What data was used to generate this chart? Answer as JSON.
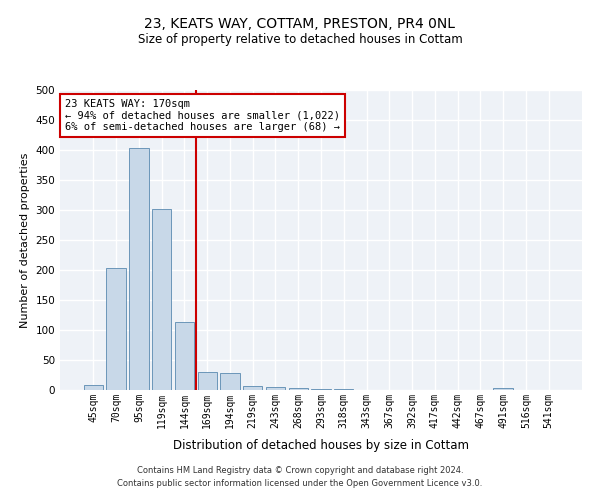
{
  "title_line1": "23, KEATS WAY, COTTAM, PRESTON, PR4 0NL",
  "title_line2": "Size of property relative to detached houses in Cottam",
  "xlabel": "Distribution of detached houses by size in Cottam",
  "ylabel": "Number of detached properties",
  "bar_color": "#c8d8e8",
  "bar_edge_color": "#5a8ab0",
  "categories": [
    "45sqm",
    "70sqm",
    "95sqm",
    "119sqm",
    "144sqm",
    "169sqm",
    "194sqm",
    "219sqm",
    "243sqm",
    "268sqm",
    "293sqm",
    "318sqm",
    "343sqm",
    "367sqm",
    "392sqm",
    "417sqm",
    "442sqm",
    "467sqm",
    "491sqm",
    "516sqm",
    "541sqm"
  ],
  "values": [
    8,
    204,
    403,
    301,
    113,
    30,
    28,
    7,
    5,
    3,
    2,
    2,
    0,
    0,
    0,
    0,
    0,
    0,
    4,
    0,
    0
  ],
  "ylim": [
    0,
    500
  ],
  "yticks": [
    0,
    50,
    100,
    150,
    200,
    250,
    300,
    350,
    400,
    450,
    500
  ],
  "annotation_text": "23 KEATS WAY: 170sqm\n← 94% of detached houses are smaller (1,022)\n6% of semi-detached houses are larger (68) →",
  "annotation_box_color": "#ffffff",
  "annotation_box_edge_color": "#cc0000",
  "vline_x_index": 5,
  "vline_color": "#cc0000",
  "background_color": "#eef2f7",
  "grid_color": "#ffffff",
  "footer_line1": "Contains HM Land Registry data © Crown copyright and database right 2024.",
  "footer_line2": "Contains public sector information licensed under the Open Government Licence v3.0."
}
